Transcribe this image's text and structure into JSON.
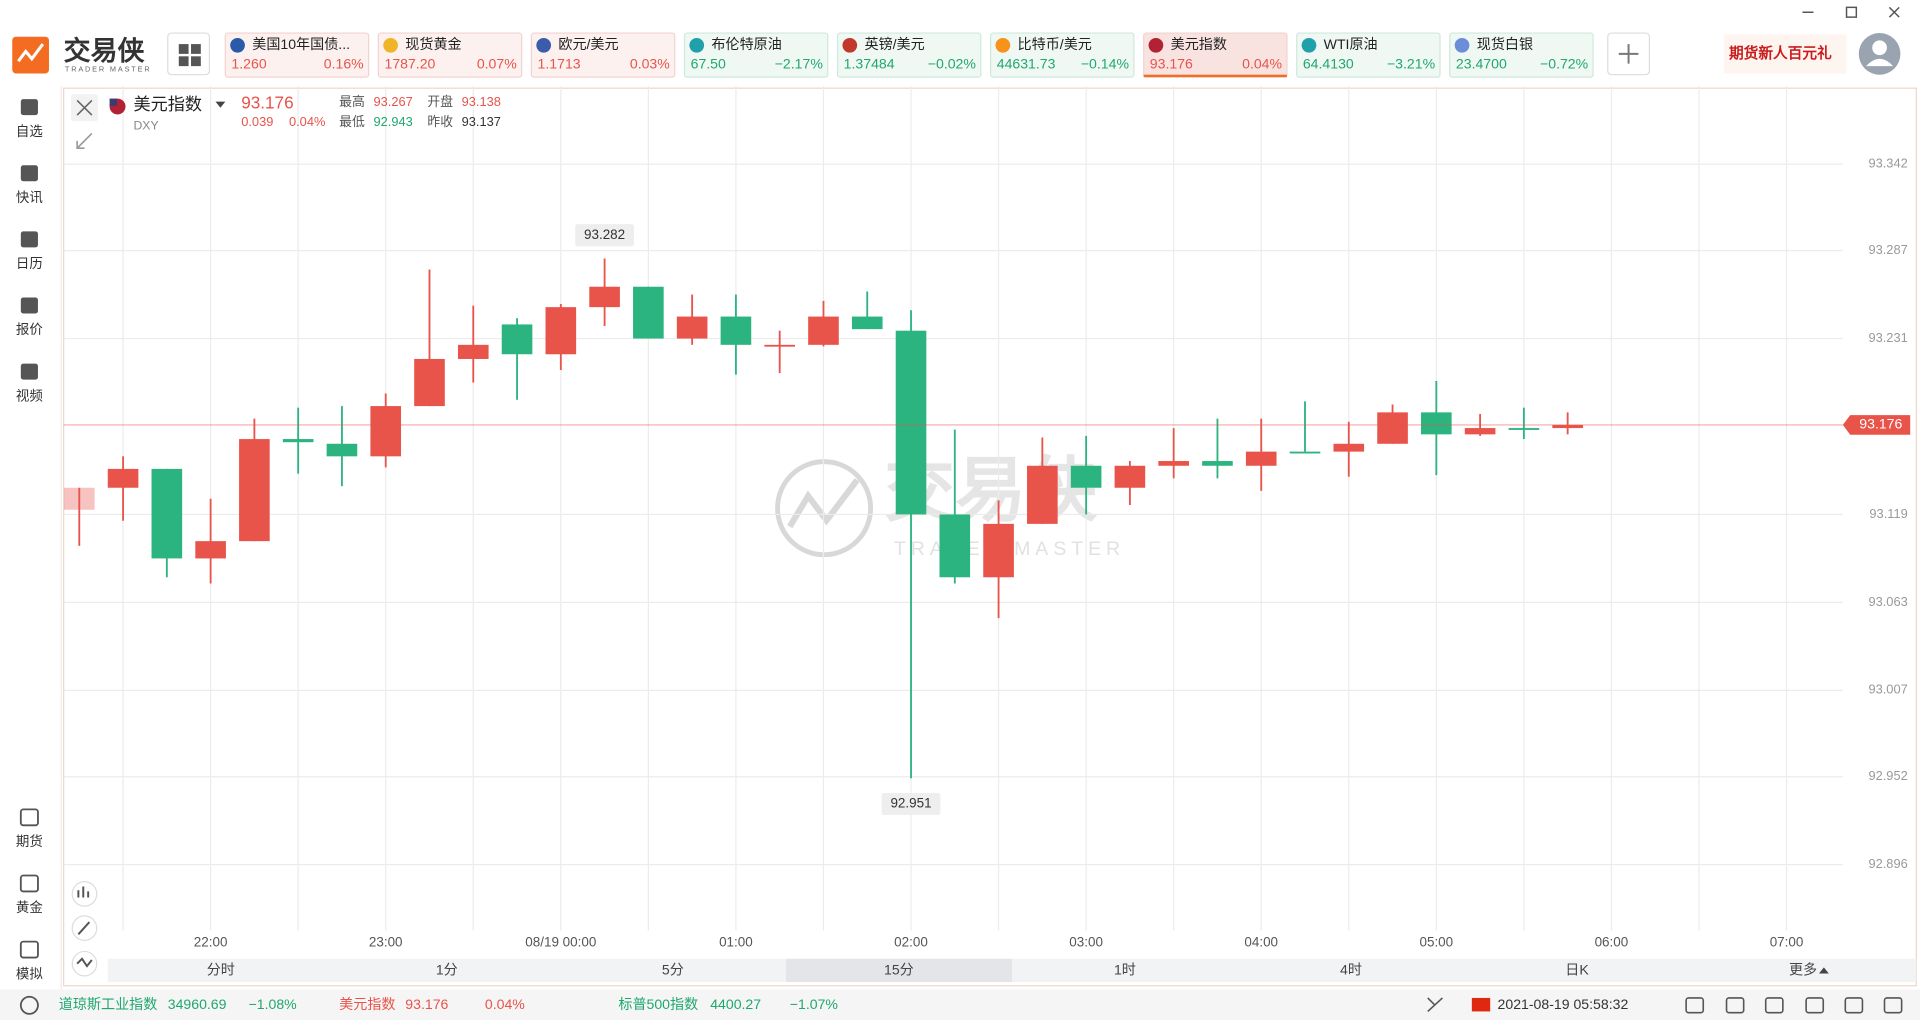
{
  "app": {
    "logo": "交易侠",
    "logo_sub": "TRADER MASTER",
    "promo": "期货新人百元礼"
  },
  "tickers": [
    {
      "name": "美国10年国债...",
      "price": "1.260",
      "change": "0.16%"
    },
    {
      "name": "现货黄金",
      "price": "1787.20",
      "change": "0.07%"
    },
    {
      "name": "欧元/美元",
      "price": "1.1713",
      "change": "0.03%"
    },
    {
      "name": "布伦特原油",
      "price": "67.50",
      "change": "−2.17%"
    },
    {
      "name": "英镑/美元",
      "price": "1.37484",
      "change": "−0.02%"
    },
    {
      "name": "比特币/美元",
      "price": "44631.73",
      "change": "−0.14%"
    },
    {
      "name": "美元指数",
      "price": "93.176",
      "change": "0.04%"
    },
    {
      "name": "WTI原油",
      "price": "64.4130",
      "change": "−3.21%"
    },
    {
      "name": "现货白银",
      "price": "23.4700",
      "change": "−0.72%"
    }
  ],
  "sidebar": {
    "top": [
      "自选",
      "快讯",
      "日历",
      "报价",
      "视频"
    ],
    "bottom": [
      "期货",
      "黄金",
      "模拟"
    ]
  },
  "quote": {
    "name": "美元指数",
    "code": "DXY",
    "last": "93.176",
    "change": "0.039",
    "change_pct": "0.04%",
    "stats": [
      {
        "label": "最高",
        "value": "93.267"
      },
      {
        "label": "开盘",
        "value": "93.138"
      },
      {
        "label": "最低",
        "value": "92.943"
      },
      {
        "label": "昨收",
        "value": "93.137"
      }
    ]
  },
  "chart_data": {
    "type": "candlestick",
    "categories": [
      null,
      null,
      null,
      "22:00",
      null,
      null,
      null,
      "23:00",
      null,
      null,
      null,
      "08/19 00:00",
      null,
      null,
      null,
      "01:00",
      null,
      null,
      null,
      "02:00",
      null,
      null,
      null,
      "03:00",
      null,
      null,
      null,
      "04:00",
      null,
      null,
      null,
      "05:00",
      null,
      null,
      null,
      "06:00",
      null,
      null,
      null,
      "07:00"
    ],
    "open": [
      93.122,
      93.136,
      93.148,
      93.091,
      93.102,
      93.167,
      93.164,
      93.156,
      93.188,
      93.218,
      93.24,
      93.221,
      93.251,
      93.264,
      93.231,
      93.245,
      93.226,
      93.227,
      93.245,
      93.236,
      93.119,
      93.079,
      93.113,
      93.15,
      93.136,
      93.15,
      93.153,
      93.15,
      93.159,
      93.159,
      93.164,
      93.184,
      93.17,
      93.174,
      93.174,
      null,
      null,
      null,
      null,
      null
    ],
    "high": [
      93.136,
      93.156,
      93.148,
      93.129,
      93.18,
      93.187,
      93.188,
      93.196,
      93.275,
      93.252,
      93.244,
      93.253,
      93.282,
      93.264,
      93.259,
      93.259,
      93.236,
      93.255,
      93.261,
      93.249,
      93.173,
      93.128,
      93.168,
      93.169,
      93.153,
      93.174,
      93.18,
      93.18,
      93.191,
      93.178,
      93.189,
      93.204,
      93.183,
      93.187,
      93.184,
      null,
      null,
      null,
      null,
      null
    ],
    "low": [
      93.099,
      93.115,
      93.079,
      93.075,
      93.102,
      93.145,
      93.137,
      93.149,
      93.188,
      93.203,
      93.192,
      93.211,
      93.239,
      93.231,
      93.227,
      93.208,
      93.209,
      93.226,
      93.237,
      92.951,
      93.075,
      93.053,
      93.113,
      93.119,
      93.125,
      93.142,
      93.142,
      93.134,
      93.159,
      93.143,
      93.164,
      93.144,
      93.169,
      93.167,
      93.17,
      null,
      null,
      null,
      null,
      null
    ],
    "close": [
      93.136,
      93.148,
      93.091,
      93.102,
      93.167,
      93.165,
      93.156,
      93.188,
      93.218,
      93.227,
      93.221,
      93.251,
      93.264,
      93.231,
      93.245,
      93.227,
      93.227,
      93.245,
      93.237,
      93.119,
      93.079,
      93.113,
      93.15,
      93.136,
      93.15,
      93.153,
      93.15,
      93.159,
      93.159,
      93.164,
      93.184,
      93.17,
      93.174,
      93.173,
      93.176,
      null,
      null,
      null,
      null,
      null
    ],
    "ylim": [
      92.854,
      93.392
    ],
    "yticks": [
      92.896,
      92.952,
      93.007,
      93.063,
      93.119,
      93.231,
      93.287,
      93.342
    ],
    "grid": true,
    "up_color": "#e8534a",
    "down_color": "#2bb47f",
    "price_line": true
  },
  "timeframes": {
    "items": [
      "分时",
      "1分",
      "5分",
      "15分",
      "1时",
      "4时",
      "日K",
      "更多"
    ],
    "active": 3
  },
  "status_bar": {
    "indices": [
      {
        "name": "道琼斯工业指数",
        "price": "34960.69",
        "change": "−1.08%"
      },
      {
        "name": "美元指数",
        "price": "93.176",
        "change": "0.04%"
      },
      {
        "name": "标普500指数",
        "price": "4400.27",
        "change": "−1.07%"
      }
    ],
    "datetime": "2021-08-19 05:58:32"
  }
}
